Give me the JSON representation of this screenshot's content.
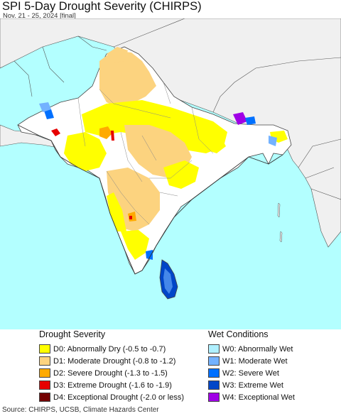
{
  "header": {
    "title": "SPI 5-Day Drought Severity (CHIRPS)",
    "subtitle": "Nov. 21 - 25, 2024 [final]"
  },
  "legend": {
    "drought_heading": "Drought Severity",
    "wet_heading": "Wet Conditions",
    "drought_items": [
      {
        "label": "D0: Abnormally Dry (-0.5 to -0.7)",
        "color": "#ffff00"
      },
      {
        "label": "D1: Moderate Drought (-0.8 to -1.2)",
        "color": "#fcd37f"
      },
      {
        "label": "D2: Severe Drought (-1.3 to -1.5)",
        "color": "#ffaa00"
      },
      {
        "label": "D3: Extreme Drought (-1.6 to -1.9)",
        "color": "#e60000"
      },
      {
        "label": "D4: Exceptional Drought (-2.0 or less)",
        "color": "#730000"
      }
    ],
    "wet_items": [
      {
        "label": "W0: Abnormally Wet",
        "color": "#aff0ff"
      },
      {
        "label": "W1: Moderate Wet",
        "color": "#73b2ff"
      },
      {
        "label": "W2: Severe Wet",
        "color": "#0070ff"
      },
      {
        "label": "W3: Extreme Wet",
        "color": "#0046c8"
      },
      {
        "label": "W4: Exceptional Wet",
        "color": "#a000e6"
      }
    ]
  },
  "map": {
    "ocean_color": "#b3ffff",
    "land_color": "#ffffff",
    "outside_land_color": "#f0f0f0"
  },
  "footer": {
    "source": "Source: CHIRPS, UCSB, Climate Hazards Center"
  }
}
